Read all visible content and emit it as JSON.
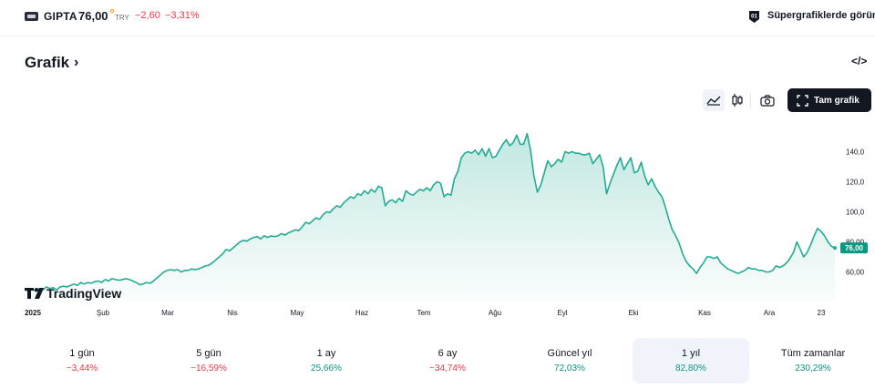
{
  "header": {
    "ticker": "GIPTA",
    "price": "76,00",
    "currency": "TRY",
    "change": "−2,60",
    "change_pct": "−3,31%",
    "supercharts_link": "Süpergrafiklerde görün"
  },
  "section": {
    "title": "Grafik",
    "chevron": "›",
    "embed_icon": "</>"
  },
  "toolbar": {
    "fullscreen_label": "Tam grafik",
    "icons": [
      "area-chart-icon",
      "candlestick-icon",
      "camera-icon",
      "fullscreen-icon"
    ]
  },
  "colors": {
    "line": "#22ab94",
    "negative": "#f23645",
    "positive": "#089981",
    "price_tag": "#089981"
  },
  "chart_data": {
    "type": "area",
    "y_axis": {
      "ticks": [
        60,
        80,
        100,
        120,
        140
      ],
      "tick_labels": [
        "60,00",
        "80,00",
        "100,0",
        "120,0",
        "140,0"
      ],
      "range": [
        38,
        158
      ],
      "position": "right"
    },
    "x_axis": {
      "tick_labels": [
        "2025",
        "Şub",
        "Mar",
        "Nis",
        "May",
        "Haz",
        "Tem",
        "Ağu",
        "Eyl",
        "Eki",
        "Kas",
        "Ara",
        "23"
      ]
    },
    "last_value_label": "76,00",
    "watermark": "TradingView",
    "series": [
      {
        "values": [
          48,
          47.5,
          48.5,
          47,
          49,
          48,
          50,
          49,
          49.5,
          48,
          50,
          50.5,
          50,
          51,
          52,
          51,
          53,
          52,
          53,
          52.5,
          53.5,
          54,
          53,
          55,
          54,
          55.5,
          55,
          54.5,
          55,
          55.5,
          55,
          54,
          53,
          51.5,
          52,
          53,
          52.5,
          54,
          56,
          58,
          60,
          61,
          61.5,
          61,
          61.5,
          60,
          61,
          61,
          62,
          61.5,
          62,
          63,
          64,
          64.5,
          66,
          68,
          70,
          72,
          75,
          74,
          76,
          78,
          80,
          81,
          80.5,
          82,
          83,
          83.5,
          82,
          84,
          83,
          84,
          83.5,
          84,
          85.5,
          84.5,
          86,
          87,
          88,
          87.5,
          90,
          93,
          92,
          94,
          96,
          95,
          98,
          100,
          99.5,
          102,
          104,
          103,
          106,
          108,
          110,
          109,
          112,
          111,
          114,
          112,
          115,
          113,
          117,
          116,
          104,
          107,
          108,
          106,
          109,
          107,
          114,
          112,
          111,
          113,
          115,
          114,
          116,
          114,
          118,
          120,
          119,
          110,
          112,
          111,
          122,
          127,
          136,
          139,
          140,
          139,
          141,
          138,
          142,
          137,
          142,
          136,
          137,
          141,
          145,
          148,
          144,
          146,
          151,
          145,
          145,
          152,
          141,
          124,
          113,
          118,
          126,
          134,
          130,
          132,
          135,
          133,
          140,
          139,
          140,
          139,
          139,
          138,
          138,
          139,
          132,
          135,
          138,
          130,
          112,
          119,
          125,
          131,
          136,
          128,
          132,
          136,
          126,
          127,
          133,
          124,
          118,
          122,
          117,
          113,
          110,
          103,
          95,
          88,
          84,
          79,
          72,
          67,
          64,
          62,
          59,
          63,
          66,
          70,
          70,
          69,
          70,
          66,
          64,
          62,
          61,
          60,
          59,
          60,
          61,
          63,
          62,
          62,
          61,
          61,
          60,
          60,
          61,
          64,
          63,
          64,
          66,
          69,
          73,
          80,
          75,
          70,
          73,
          78,
          84,
          89,
          87,
          84,
          80,
          77,
          76
        ]
      }
    ]
  },
  "periods": [
    {
      "label": "1 gün",
      "value": "−3,44%",
      "sign": "neg",
      "active": false
    },
    {
      "label": "5 gün",
      "value": "−16,59%",
      "sign": "neg",
      "active": false
    },
    {
      "label": "1 ay",
      "value": "25,66%",
      "sign": "pos",
      "active": false
    },
    {
      "label": "6 ay",
      "value": "−34,74%",
      "sign": "neg",
      "active": false
    },
    {
      "label": "Güncel yıl",
      "value": "72,03%",
      "sign": "pos",
      "active": false
    },
    {
      "label": "1 yıl",
      "value": "82,80%",
      "sign": "pos",
      "active": true
    },
    {
      "label": "Tüm zamanlar",
      "value": "230,29%",
      "sign": "pos",
      "active": false
    }
  ]
}
